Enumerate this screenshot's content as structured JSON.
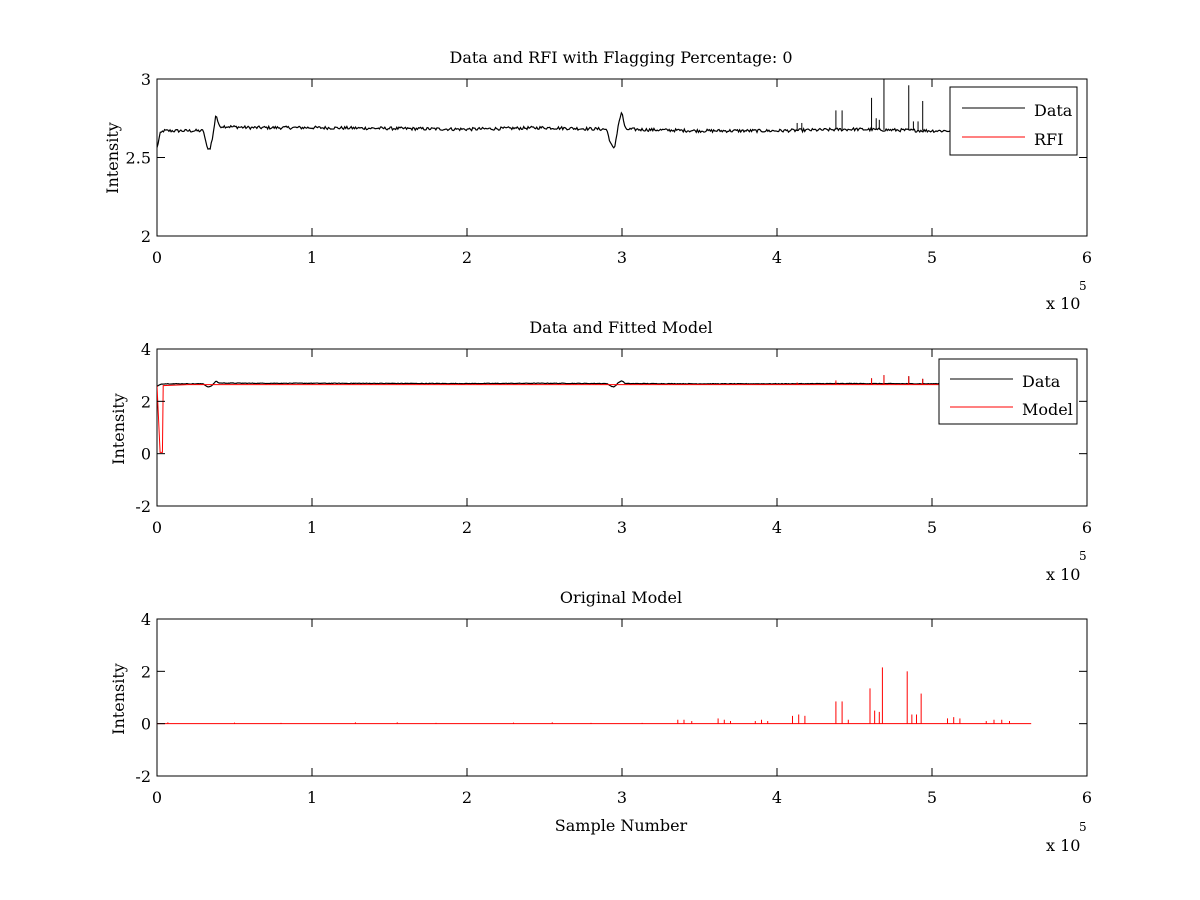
{
  "figure": {
    "background": "#ffffff",
    "colors": {
      "data": "#000000",
      "model": "#ff0000",
      "axes": "#000000"
    }
  },
  "chart_data": [
    {
      "type": "line",
      "title": "Data and RFI with Flagging Percentage: 0",
      "xlabel": "",
      "ylabel": "Intensity",
      "xlim": [
        0,
        600000
      ],
      "ylim": [
        2,
        3
      ],
      "xticks": [
        "0",
        "1",
        "2",
        "3",
        "4",
        "5",
        "6"
      ],
      "yticks": [
        "2",
        "2.5",
        "3"
      ],
      "x_exponent_label": {
        "base": "x 10",
        "power": "5"
      },
      "legend": {
        "position": "top-right",
        "entries": [
          "Data",
          "RFI"
        ]
      },
      "grid": false,
      "series": [
        {
          "name": "Data",
          "color": "#000000",
          "baseline": 2.68,
          "points": [
            [
              0,
              2.56
            ],
            [
              2000,
              2.65
            ],
            [
              4000,
              2.67
            ],
            [
              30000,
              2.67
            ],
            [
              32000,
              2.57
            ],
            [
              34000,
              2.55
            ],
            [
              36000,
              2.63
            ],
            [
              38000,
              2.78
            ],
            [
              40000,
              2.7
            ],
            [
              60000,
              2.69
            ],
            [
              100000,
              2.69
            ],
            [
              200000,
              2.68
            ],
            [
              250000,
              2.69
            ],
            [
              290000,
              2.68
            ],
            [
              293000,
              2.58
            ],
            [
              295000,
              2.55
            ],
            [
              298000,
              2.73
            ],
            [
              300000,
              2.79
            ],
            [
              302000,
              2.68
            ],
            [
              350000,
              2.67
            ],
            [
              400000,
              2.67
            ],
            [
              450000,
              2.68
            ],
            [
              500000,
              2.67
            ],
            [
              520000,
              2.67
            ],
            [
              540000,
              2.67
            ]
          ],
          "spikes": [
            [
              413000,
              2.72
            ],
            [
              416000,
              2.72
            ],
            [
              438000,
              2.8
            ],
            [
              442000,
              2.8
            ],
            [
              461000,
              2.88
            ],
            [
              464000,
              2.75
            ],
            [
              466000,
              2.74
            ],
            [
              469000,
              3.0
            ],
            [
              485000,
              2.96
            ],
            [
              488000,
              2.73
            ],
            [
              491000,
              2.73
            ],
            [
              494000,
              2.86
            ]
          ]
        },
        {
          "name": "RFI",
          "color": "#ff0000",
          "points": []
        }
      ]
    },
    {
      "type": "line",
      "title": "Data and Fitted Model",
      "xlabel": "",
      "ylabel": "Intensity",
      "xlim": [
        0,
        600000
      ],
      "ylim": [
        -2,
        4
      ],
      "xticks": [
        "0",
        "1",
        "2",
        "3",
        "4",
        "5",
        "6"
      ],
      "yticks": [
        "-2",
        "0",
        "2",
        "4"
      ],
      "x_exponent_label": {
        "base": "x 10",
        "power": "5"
      },
      "legend": {
        "position": "top-right",
        "entries": [
          "Data",
          "Model"
        ]
      },
      "grid": false,
      "series": [
        {
          "name": "Data",
          "color": "#000000",
          "points": [
            [
              0,
              2.56
            ],
            [
              2000,
              2.65
            ],
            [
              4000,
              2.67
            ],
            [
              30000,
              2.67
            ],
            [
              32000,
              2.57
            ],
            [
              34000,
              2.55
            ],
            [
              36000,
              2.63
            ],
            [
              38000,
              2.78
            ],
            [
              40000,
              2.7
            ],
            [
              60000,
              2.69
            ],
            [
              100000,
              2.69
            ],
            [
              200000,
              2.68
            ],
            [
              250000,
              2.69
            ],
            [
              290000,
              2.68
            ],
            [
              293000,
              2.58
            ],
            [
              295000,
              2.55
            ],
            [
              298000,
              2.73
            ],
            [
              300000,
              2.79
            ],
            [
              302000,
              2.68
            ],
            [
              350000,
              2.67
            ],
            [
              400000,
              2.67
            ],
            [
              450000,
              2.68
            ],
            [
              500000,
              2.67
            ],
            [
              540000,
              2.67
            ]
          ],
          "spikes": [
            [
              461000,
              2.88
            ],
            [
              469000,
              3.0
            ],
            [
              485000,
              2.96
            ],
            [
              494000,
              2.86
            ]
          ]
        },
        {
          "name": "Model",
          "color": "#ff0000",
          "points": [
            [
              0,
              2.6
            ],
            [
              2000,
              0.05
            ],
            [
              3500,
              0.05
            ],
            [
              4000,
              2.6
            ],
            [
              20000,
              2.64
            ],
            [
              540000,
              2.64
            ]
          ],
          "spikes": [
            [
              413000,
              2.72
            ],
            [
              438000,
              2.8
            ],
            [
              461000,
              2.88
            ],
            [
              469000,
              3.0
            ],
            [
              485000,
              2.96
            ],
            [
              494000,
              2.86
            ]
          ]
        }
      ]
    },
    {
      "type": "line",
      "title": "Original Model",
      "xlabel": "Sample Number",
      "ylabel": "Intensity",
      "xlim": [
        0,
        600000
      ],
      "ylim": [
        -2,
        4
      ],
      "xticks": [
        "0",
        "1",
        "2",
        "3",
        "4",
        "5",
        "6"
      ],
      "yticks": [
        "-2",
        "0",
        "2",
        "4"
      ],
      "x_exponent_label": {
        "base": "x 10",
        "power": "5"
      },
      "grid": false,
      "series": [
        {
          "name": "",
          "color": "#ff0000",
          "baseline": 0,
          "x_end": 564000,
          "spikes": [
            [
              7000,
              0.05
            ],
            [
              50000,
              0.04
            ],
            [
              80000,
              0.03
            ],
            [
              128000,
              0.05
            ],
            [
              155000,
              0.05
            ],
            [
              180000,
              0.03
            ],
            [
              230000,
              0.04
            ],
            [
              255000,
              0.05
            ],
            [
              280000,
              0.03
            ],
            [
              313000,
              0.03
            ],
            [
              336000,
              0.15
            ],
            [
              340000,
              0.15
            ],
            [
              345000,
              0.1
            ],
            [
              362000,
              0.2
            ],
            [
              366000,
              0.15
            ],
            [
              370000,
              0.1
            ],
            [
              386000,
              0.1
            ],
            [
              390000,
              0.15
            ],
            [
              394000,
              0.1
            ],
            [
              410000,
              0.3
            ],
            [
              414000,
              0.35
            ],
            [
              418000,
              0.3
            ],
            [
              438000,
              0.85
            ],
            [
              442000,
              0.85
            ],
            [
              446000,
              0.15
            ],
            [
              460000,
              1.35
            ],
            [
              463000,
              0.5
            ],
            [
              466000,
              0.45
            ],
            [
              468000,
              2.15
            ],
            [
              484000,
              2.0
            ],
            [
              487000,
              0.35
            ],
            [
              490000,
              0.35
            ],
            [
              493000,
              1.15
            ],
            [
              510000,
              0.2
            ],
            [
              514000,
              0.25
            ],
            [
              518000,
              0.2
            ],
            [
              535000,
              0.1
            ],
            [
              540000,
              0.15
            ],
            [
              545000,
              0.15
            ],
            [
              550000,
              0.1
            ]
          ]
        }
      ]
    }
  ]
}
